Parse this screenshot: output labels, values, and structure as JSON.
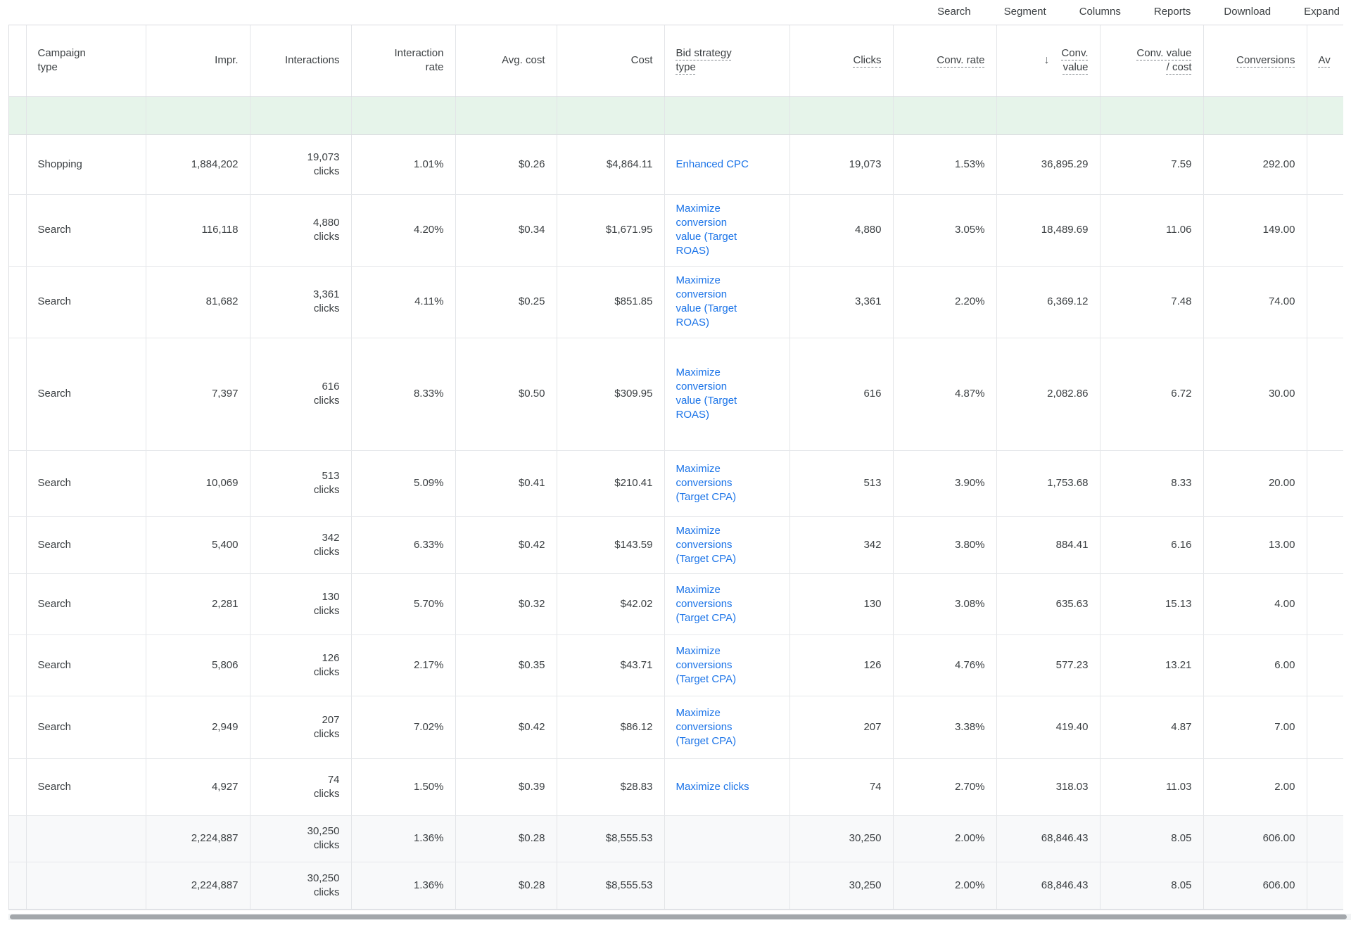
{
  "toolbar": {
    "items": [
      {
        "id": "search",
        "label": "Search"
      },
      {
        "id": "segment",
        "label": "Segment"
      },
      {
        "id": "columns",
        "label": "Columns"
      },
      {
        "id": "reports",
        "label": "Reports"
      },
      {
        "id": "download",
        "label": "Download"
      },
      {
        "id": "expand",
        "label": "Expand"
      }
    ]
  },
  "table": {
    "sort": {
      "column": "conv_value",
      "direction": "desc"
    },
    "columns": [
      {
        "id": "campaign_type",
        "label": "Campaign type",
        "align": "left",
        "dotted": false
      },
      {
        "id": "impr",
        "label": "Impr.",
        "align": "right",
        "dotted": false
      },
      {
        "id": "interactions",
        "label": "Interactions",
        "align": "right",
        "dotted": false
      },
      {
        "id": "interaction_rate",
        "label": "Interaction rate",
        "align": "right",
        "dotted": false
      },
      {
        "id": "avg_cost",
        "label": "Avg. cost",
        "align": "right",
        "dotted": false
      },
      {
        "id": "cost",
        "label": "Cost",
        "align": "right",
        "dotted": false
      },
      {
        "id": "bid_strategy_type",
        "label": "Bid strategy type",
        "align": "left",
        "dotted": true
      },
      {
        "id": "clicks",
        "label": "Clicks",
        "align": "right",
        "dotted": true
      },
      {
        "id": "conv_rate",
        "label": "Conv. rate",
        "align": "right",
        "dotted": true
      },
      {
        "id": "conv_value",
        "label": "Conv. value",
        "align": "right",
        "dotted": true,
        "sorted": "desc"
      },
      {
        "id": "conv_value_per_cost",
        "label": "Conv. value / cost",
        "align": "right",
        "dotted": true
      },
      {
        "id": "conversions",
        "label": "Conversions",
        "align": "right",
        "dotted": true
      },
      {
        "id": "av",
        "label": "Av",
        "align": "left",
        "dotted": true
      }
    ],
    "interactions_unit": "clicks",
    "rows": [
      {
        "campaign_type": "Shopping",
        "impr": "1,884,202",
        "interactions": "19,073",
        "interaction_rate": "1.01%",
        "avg_cost": "$0.26",
        "cost": "$4,864.11",
        "bid_strategy_type": "Enhanced CPC",
        "clicks": "19,073",
        "conv_rate": "1.53%",
        "conv_value": "36,895.29",
        "conv_value_per_cost": "7.59",
        "conversions": "292.00"
      },
      {
        "campaign_type": "Search",
        "impr": "116,118",
        "interactions": "4,880",
        "interaction_rate": "4.20%",
        "avg_cost": "$0.34",
        "cost": "$1,671.95",
        "bid_strategy_type": "Maximize conversion value (Target ROAS)",
        "clicks": "4,880",
        "conv_rate": "3.05%",
        "conv_value": "18,489.69",
        "conv_value_per_cost": "11.06",
        "conversions": "149.00"
      },
      {
        "campaign_type": "Search",
        "impr": "81,682",
        "interactions": "3,361",
        "interaction_rate": "4.11%",
        "avg_cost": "$0.25",
        "cost": "$851.85",
        "bid_strategy_type": "Maximize conversion value (Target ROAS)",
        "clicks": "3,361",
        "conv_rate": "2.20%",
        "conv_value": "6,369.12",
        "conv_value_per_cost": "7.48",
        "conversions": "74.00"
      },
      {
        "campaign_type": "Search",
        "impr": "7,397",
        "interactions": "616",
        "interaction_rate": "8.33%",
        "avg_cost": "$0.50",
        "cost": "$309.95",
        "bid_strategy_type": "Maximize conversion value (Target ROAS)",
        "clicks": "616",
        "conv_rate": "4.87%",
        "conv_value": "2,082.86",
        "conv_value_per_cost": "6.72",
        "conversions": "30.00"
      },
      {
        "campaign_type": "Search",
        "impr": "10,069",
        "interactions": "513",
        "interaction_rate": "5.09%",
        "avg_cost": "$0.41",
        "cost": "$210.41",
        "bid_strategy_type": "Maximize conversions (Target CPA)",
        "clicks": "513",
        "conv_rate": "3.90%",
        "conv_value": "1,753.68",
        "conv_value_per_cost": "8.33",
        "conversions": "20.00"
      },
      {
        "campaign_type": "Search",
        "impr": "5,400",
        "interactions": "342",
        "interaction_rate": "6.33%",
        "avg_cost": "$0.42",
        "cost": "$143.59",
        "bid_strategy_type": "Maximize conversions (Target CPA)",
        "clicks": "342",
        "conv_rate": "3.80%",
        "conv_value": "884.41",
        "conv_value_per_cost": "6.16",
        "conversions": "13.00"
      },
      {
        "campaign_type": "Search",
        "impr": "2,281",
        "interactions": "130",
        "interaction_rate": "5.70%",
        "avg_cost": "$0.32",
        "cost": "$42.02",
        "bid_strategy_type": "Maximize conversions (Target CPA)",
        "clicks": "130",
        "conv_rate": "3.08%",
        "conv_value": "635.63",
        "conv_value_per_cost": "15.13",
        "conversions": "4.00"
      },
      {
        "campaign_type": "Search",
        "impr": "5,806",
        "interactions": "126",
        "interaction_rate": "2.17%",
        "avg_cost": "$0.35",
        "cost": "$43.71",
        "bid_strategy_type": "Maximize conversions (Target CPA)",
        "clicks": "126",
        "conv_rate": "4.76%",
        "conv_value": "577.23",
        "conv_value_per_cost": "13.21",
        "conversions": "6.00"
      },
      {
        "campaign_type": "Search",
        "impr": "2,949",
        "interactions": "207",
        "interaction_rate": "7.02%",
        "avg_cost": "$0.42",
        "cost": "$86.12",
        "bid_strategy_type": "Maximize conversions (Target CPA)",
        "clicks": "207",
        "conv_rate": "3.38%",
        "conv_value": "419.40",
        "conv_value_per_cost": "4.87",
        "conversions": "7.00"
      },
      {
        "campaign_type": "Search",
        "impr": "4,927",
        "interactions": "74",
        "interaction_rate": "1.50%",
        "avg_cost": "$0.39",
        "cost": "$28.83",
        "bid_strategy_type": "Maximize clicks",
        "clicks": "74",
        "conv_rate": "2.70%",
        "conv_value": "318.03",
        "conv_value_per_cost": "11.03",
        "conversions": "2.00"
      }
    ],
    "totals": [
      {
        "campaign_type": "",
        "impr": "2,224,887",
        "interactions": "30,250",
        "interaction_rate": "1.36%",
        "avg_cost": "$0.28",
        "cost": "$8,555.53",
        "bid_strategy_type": "",
        "clicks": "30,250",
        "conv_rate": "2.00%",
        "conv_value": "68,846.43",
        "conv_value_per_cost": "8.05",
        "conversions": "606.00"
      },
      {
        "campaign_type": "",
        "impr": "2,224,887",
        "interactions": "30,250",
        "interaction_rate": "1.36%",
        "avg_cost": "$0.28",
        "cost": "$8,555.53",
        "bid_strategy_type": "",
        "clicks": "30,250",
        "conv_rate": "2.00%",
        "conv_value": "68,846.43",
        "conv_value_per_cost": "8.05",
        "conversions": "606.00"
      }
    ]
  },
  "colors": {
    "link_blue": "#1a73e8",
    "filter_row_green": "#e6f4ea",
    "totals_row_gray": "#f8f9fa",
    "text": "#3c4043",
    "border": "#e0e2e5"
  },
  "icons": {
    "sort_descending": "↓"
  }
}
